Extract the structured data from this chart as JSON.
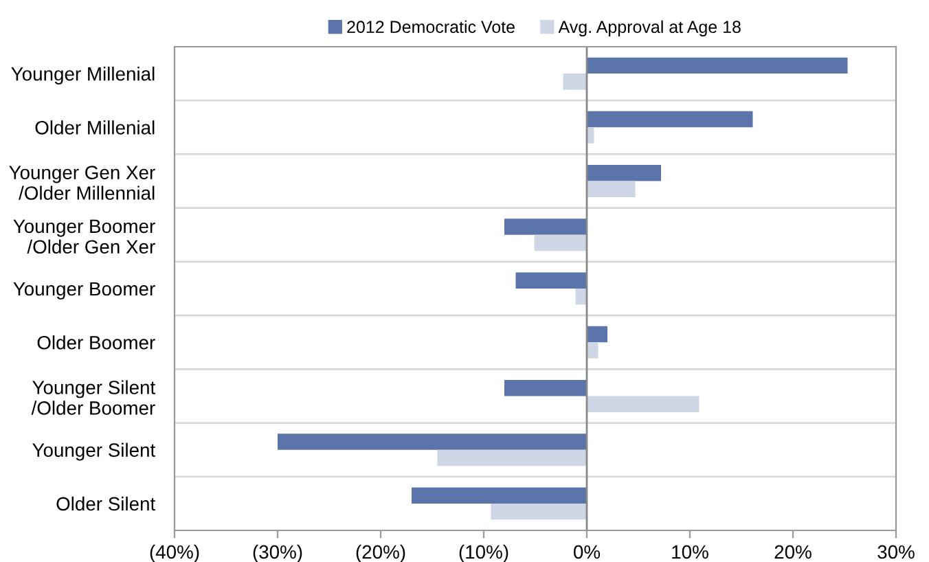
{
  "chart_data": {
    "type": "bar",
    "orientation": "horizontal",
    "categories": [
      "Younger Millenial",
      "Older Millenial",
      "Younger Gen Xer\n/Older Millennial",
      "Younger Boomer\n/Older Gen Xer",
      "Younger Boomer",
      "Older Boomer",
      "Younger Silent\n/Older Boomer",
      "Younger Silent",
      "Older Silent"
    ],
    "series": [
      {
        "name": "2012 Democratic Vote",
        "color": "#5b75aa",
        "values": [
          25.3,
          16.1,
          7.2,
          -8,
          -6.9,
          2,
          -8,
          -30,
          -17
        ]
      },
      {
        "name": "Avg. Approval at Age 18",
        "color": "#cfd6e6",
        "values": [
          -2.3,
          0.7,
          4.7,
          -5.1,
          -1.1,
          1.1,
          10.9,
          -14.5,
          -9.3
        ]
      }
    ],
    "xlim": [
      -40,
      30
    ],
    "xticks": [
      {
        "value": -40,
        "label": "(40%)"
      },
      {
        "value": -30,
        "label": "(30%)"
      },
      {
        "value": -20,
        "label": "(20%)"
      },
      {
        "value": -10,
        "label": "(10%)"
      },
      {
        "value": 0,
        "label": "0%"
      },
      {
        "value": 10,
        "label": "10%"
      },
      {
        "value": 20,
        "label": "20%"
      },
      {
        "value": 30,
        "label": "30%"
      }
    ],
    "grid": "y",
    "legend": "top"
  }
}
